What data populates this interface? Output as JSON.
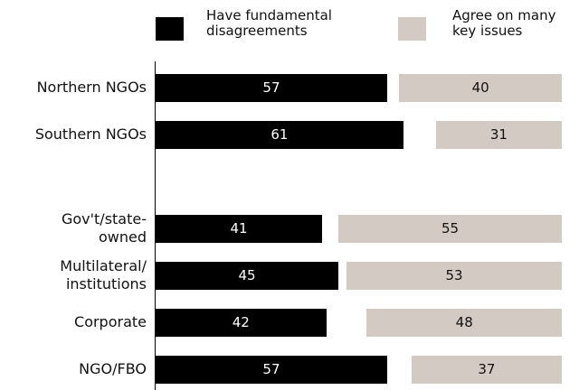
{
  "chart_data": {
    "type": "bar",
    "categories": [
      "Northern NGOs",
      "Southern NGOs",
      null,
      "Gov't/state-\nowned",
      "Multilateral/\ninstitutions",
      "Corporate",
      "NGO/FBO"
    ],
    "series": [
      {
        "name": "Have fundamental\ndisagreements",
        "color": "#000000",
        "values": [
          57,
          61,
          null,
          41,
          45,
          42,
          57
        ]
      },
      {
        "name": "Agree on many\nkey issues",
        "color": "#d4cac4",
        "values": [
          40,
          31,
          null,
          55,
          53,
          48,
          37
        ]
      }
    ],
    "xlim": [
      0,
      100
    ]
  }
}
